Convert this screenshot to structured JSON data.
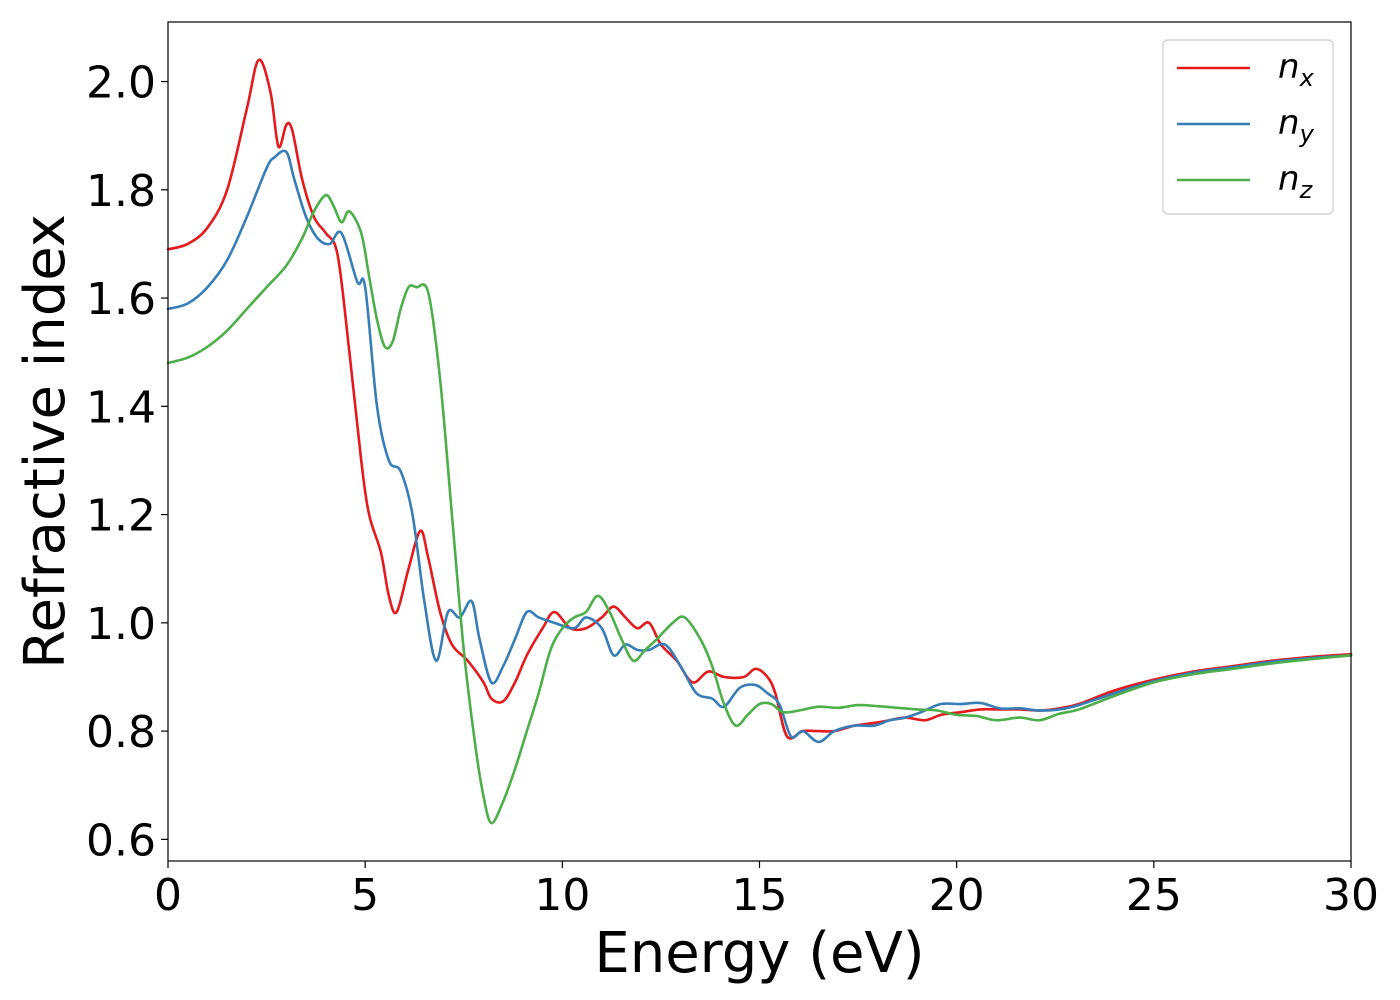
{
  "chart_data": {
    "type": "line",
    "title": "",
    "xlabel": "Energy (eV)",
    "ylabel": "Refractive index",
    "xlim": [
      0,
      30
    ],
    "ylim": [
      0.56,
      2.11
    ],
    "xticks": [
      0,
      5,
      10,
      15,
      20,
      25,
      30
    ],
    "yticks": [
      0.6,
      0.8,
      1.0,
      1.2,
      1.4,
      1.6,
      1.8,
      2.0
    ],
    "xtick_labels": [
      "0",
      "5",
      "10",
      "15",
      "20",
      "25",
      "30"
    ],
    "ytick_labels": [
      "0.6",
      "0.8",
      "1.0",
      "1.2",
      "1.4",
      "1.6",
      "1.8",
      "2.0"
    ],
    "grid": false,
    "legend_position": "top-right",
    "series": [
      {
        "name": "n_x",
        "label_base": "n",
        "label_sub": "x",
        "color": "#e41a1c",
        "x": [
          0,
          0.5,
          1.0,
          1.5,
          2.0,
          2.3,
          2.6,
          2.8,
          3.0,
          3.15,
          3.4,
          3.7,
          4.0,
          4.3,
          4.6,
          4.9,
          5.1,
          5.4,
          5.6,
          5.8,
          6.1,
          6.4,
          6.6,
          6.9,
          7.2,
          7.6,
          8.0,
          8.2,
          8.5,
          8.8,
          9.1,
          9.5,
          9.8,
          10.2,
          10.6,
          11.0,
          11.3,
          11.6,
          11.9,
          12.2,
          12.5,
          12.9,
          13.3,
          13.7,
          14.1,
          14.6,
          14.9,
          15.2,
          15.4,
          15.7,
          16.1,
          16.5,
          16.9,
          17.4,
          17.9,
          18.3,
          18.7,
          19.2,
          19.6,
          20.1,
          20.6,
          21.1,
          21.6,
          22.1,
          22.6,
          23.1,
          24.0,
          25.0,
          26.0,
          27.0,
          28.0,
          29.0,
          30.0
        ],
        "y": [
          1.69,
          1.7,
          1.73,
          1.8,
          1.95,
          2.04,
          1.98,
          1.88,
          1.92,
          1.91,
          1.82,
          1.75,
          1.72,
          1.68,
          1.5,
          1.3,
          1.2,
          1.13,
          1.05,
          1.02,
          1.1,
          1.17,
          1.12,
          1.02,
          0.96,
          0.93,
          0.89,
          0.86,
          0.855,
          0.89,
          0.94,
          0.99,
          1.02,
          0.99,
          0.99,
          1.01,
          1.03,
          1.01,
          0.99,
          1.0,
          0.96,
          0.93,
          0.89,
          0.91,
          0.9,
          0.9,
          0.915,
          0.9,
          0.87,
          0.79,
          0.8,
          0.8,
          0.8,
          0.81,
          0.815,
          0.82,
          0.825,
          0.82,
          0.83,
          0.835,
          0.84,
          0.84,
          0.84,
          0.838,
          0.842,
          0.85,
          0.875,
          0.895,
          0.91,
          0.92,
          0.93,
          0.937,
          0.942
        ]
      },
      {
        "name": "n_y",
        "label_base": "n",
        "label_sub": "y",
        "color": "#377eb8",
        "x": [
          0,
          0.5,
          1.0,
          1.5,
          2.0,
          2.5,
          2.7,
          3.0,
          3.2,
          3.5,
          3.8,
          4.1,
          4.4,
          4.8,
          5.0,
          5.3,
          5.6,
          5.9,
          6.2,
          6.5,
          6.8,
          7.1,
          7.4,
          7.7,
          7.9,
          8.2,
          8.5,
          8.8,
          9.1,
          9.4,
          9.8,
          10.3,
          10.6,
          11.0,
          11.3,
          11.6,
          11.9,
          12.2,
          12.6,
          13.0,
          13.4,
          13.8,
          14.1,
          14.5,
          14.9,
          15.2,
          15.5,
          15.8,
          16.1,
          16.5,
          16.9,
          17.4,
          17.9,
          18.3,
          18.7,
          19.1,
          19.6,
          20.1,
          20.6,
          21.1,
          21.6,
          22.1,
          22.6,
          23.1,
          24.0,
          25.0,
          26.0,
          27.0,
          28.0,
          29.0,
          30.0
        ],
        "y": [
          1.58,
          1.59,
          1.62,
          1.67,
          1.75,
          1.84,
          1.86,
          1.87,
          1.82,
          1.75,
          1.71,
          1.7,
          1.72,
          1.63,
          1.62,
          1.4,
          1.3,
          1.28,
          1.2,
          1.04,
          0.93,
          1.02,
          1.01,
          1.04,
          0.97,
          0.89,
          0.92,
          0.97,
          1.02,
          1.01,
          1.0,
          0.99,
          1.01,
          0.99,
          0.94,
          0.96,
          0.95,
          0.95,
          0.96,
          0.92,
          0.87,
          0.86,
          0.845,
          0.88,
          0.885,
          0.87,
          0.85,
          0.79,
          0.8,
          0.78,
          0.8,
          0.81,
          0.81,
          0.82,
          0.825,
          0.835,
          0.85,
          0.85,
          0.852,
          0.842,
          0.842,
          0.838,
          0.84,
          0.848,
          0.87,
          0.892,
          0.908,
          0.918,
          0.928,
          0.935,
          0.94
        ]
      },
      {
        "name": "n_z",
        "label_base": "n",
        "label_sub": "z",
        "color": "#4daf4a",
        "x": [
          0,
          0.5,
          1.0,
          1.5,
          2.0,
          2.5,
          3.0,
          3.4,
          3.7,
          4.0,
          4.2,
          4.4,
          4.6,
          4.9,
          5.1,
          5.3,
          5.5,
          5.7,
          5.9,
          6.1,
          6.3,
          6.6,
          6.9,
          7.2,
          7.5,
          7.8,
          8.0,
          8.2,
          8.5,
          8.8,
          9.1,
          9.4,
          9.7,
          10.0,
          10.3,
          10.6,
          10.9,
          11.2,
          11.5,
          11.8,
          12.1,
          12.4,
          12.8,
          13.1,
          13.5,
          13.8,
          14.1,
          14.4,
          14.7,
          15.0,
          15.3,
          15.6,
          16.0,
          16.5,
          17.0,
          17.5,
          18.0,
          18.5,
          19.0,
          19.5,
          20.0,
          20.5,
          21.0,
          21.6,
          22.1,
          22.6,
          23.1,
          24.0,
          25.0,
          26.0,
          27.0,
          28.0,
          29.0,
          30.0
        ],
        "y": [
          1.48,
          1.49,
          1.51,
          1.54,
          1.58,
          1.62,
          1.66,
          1.71,
          1.76,
          1.79,
          1.77,
          1.74,
          1.76,
          1.72,
          1.64,
          1.56,
          1.51,
          1.52,
          1.58,
          1.62,
          1.62,
          1.61,
          1.45,
          1.2,
          0.95,
          0.77,
          0.68,
          0.63,
          0.67,
          0.73,
          0.8,
          0.87,
          0.95,
          0.99,
          1.01,
          1.02,
          1.05,
          1.02,
          0.97,
          0.93,
          0.95,
          0.97,
          1.0,
          1.01,
          0.97,
          0.92,
          0.85,
          0.81,
          0.83,
          0.85,
          0.85,
          0.835,
          0.838,
          0.845,
          0.843,
          0.848,
          0.846,
          0.843,
          0.84,
          0.838,
          0.83,
          0.828,
          0.82,
          0.825,
          0.82,
          0.832,
          0.84,
          0.865,
          0.89,
          0.905,
          0.915,
          0.925,
          0.933,
          0.94
        ]
      }
    ]
  }
}
